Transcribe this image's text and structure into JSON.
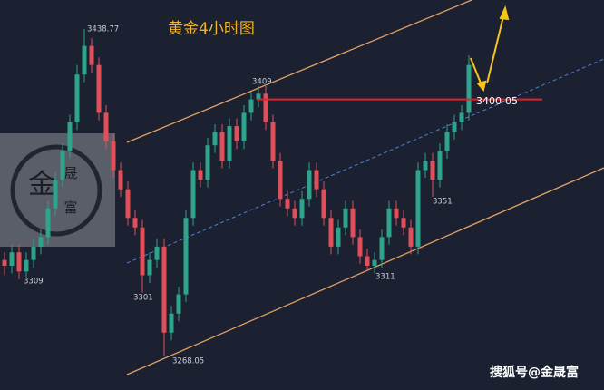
{
  "chart_data": {
    "type": "candlestick",
    "title": "黄金4小时图",
    "ylim": [
      3250,
      3454
    ],
    "up_color": "#2fa38c",
    "down_color": "#e0505a",
    "level": 3402,
    "level_color": "#e8202a",
    "annotations": [
      "3438.77",
      "3409",
      "3400-05",
      "3351",
      "3311",
      "3301",
      "3309",
      "3268.05"
    ],
    "credit": "搜狐号@金晟富",
    "logo": [
      "金",
      "晟",
      "富"
    ],
    "open": [
      3318,
      3315,
      3322,
      3312,
      3318,
      3325,
      3330,
      3345,
      3360,
      3375,
      3390,
      3415,
      3430,
      3420,
      3395,
      3380,
      3365,
      3355,
      3340,
      3335,
      3310,
      3318,
      3325,
      3280,
      3290,
      3300,
      3340,
      3365,
      3360,
      3378,
      3385,
      3370,
      3388,
      3380,
      3395,
      3402,
      3405,
      3390,
      3370,
      3350,
      3345,
      3340,
      3350,
      3365,
      3355,
      3340,
      3325,
      3335,
      3345,
      3330,
      3320,
      3315,
      3318,
      3330,
      3345,
      3340,
      3335,
      3325,
      3365,
      3370,
      3360,
      3375,
      3385,
      3390,
      3395
    ],
    "high": [
      3322,
      3326,
      3326,
      3322,
      3329,
      3334,
      3349,
      3364,
      3379,
      3394,
      3420,
      3438.77,
      3434,
      3424,
      3399,
      3384,
      3369,
      3359,
      3344,
      3339,
      3322,
      3329,
      3329,
      3294,
      3304,
      3344,
      3369,
      3369,
      3382,
      3389,
      3389,
      3392,
      3392,
      3399,
      3406,
      3409,
      3409,
      3394,
      3374,
      3354,
      3349,
      3354,
      3369,
      3369,
      3359,
      3344,
      3339,
      3349,
      3349,
      3334,
      3324,
      3322,
      3334,
      3349,
      3349,
      3344,
      3339,
      3369,
      3374,
      3374,
      3379,
      3389,
      3394,
      3399,
      3425
    ],
    "low": [
      3310,
      3311,
      3308,
      3309,
      3314,
      3321,
      3326,
      3341,
      3356,
      3371,
      3386,
      3411,
      3416,
      3391,
      3376,
      3361,
      3351,
      3336,
      3331,
      3301,
      3306,
      3314,
      3268.05,
      3276,
      3286,
      3296,
      3336,
      3356,
      3356,
      3374,
      3366,
      3366,
      3376,
      3376,
      3391,
      3398,
      3386,
      3366,
      3346,
      3341,
      3336,
      3336,
      3346,
      3351,
      3336,
      3321,
      3321,
      3331,
      3326,
      3316,
      3312,
      3311,
      3314,
      3326,
      3336,
      3331,
      3321,
      3321,
      3361,
      3351,
      3356,
      3371,
      3381,
      3386,
      3391
    ],
    "close": [
      3315,
      3322,
      3312,
      3318,
      3325,
      3330,
      3345,
      3360,
      3375,
      3390,
      3415,
      3430,
      3420,
      3395,
      3380,
      3365,
      3355,
      3340,
      3335,
      3310,
      3318,
      3325,
      3280,
      3290,
      3300,
      3340,
      3365,
      3360,
      3378,
      3385,
      3370,
      3388,
      3380,
      3395,
      3402,
      3405,
      3390,
      3370,
      3350,
      3345,
      3340,
      3350,
      3365,
      3355,
      3340,
      3325,
      3335,
      3345,
      3330,
      3320,
      3315,
      3318,
      3330,
      3345,
      3340,
      3335,
      3325,
      3365,
      3370,
      3360,
      3375,
      3385,
      3390,
      3395,
      3420
    ]
  }
}
